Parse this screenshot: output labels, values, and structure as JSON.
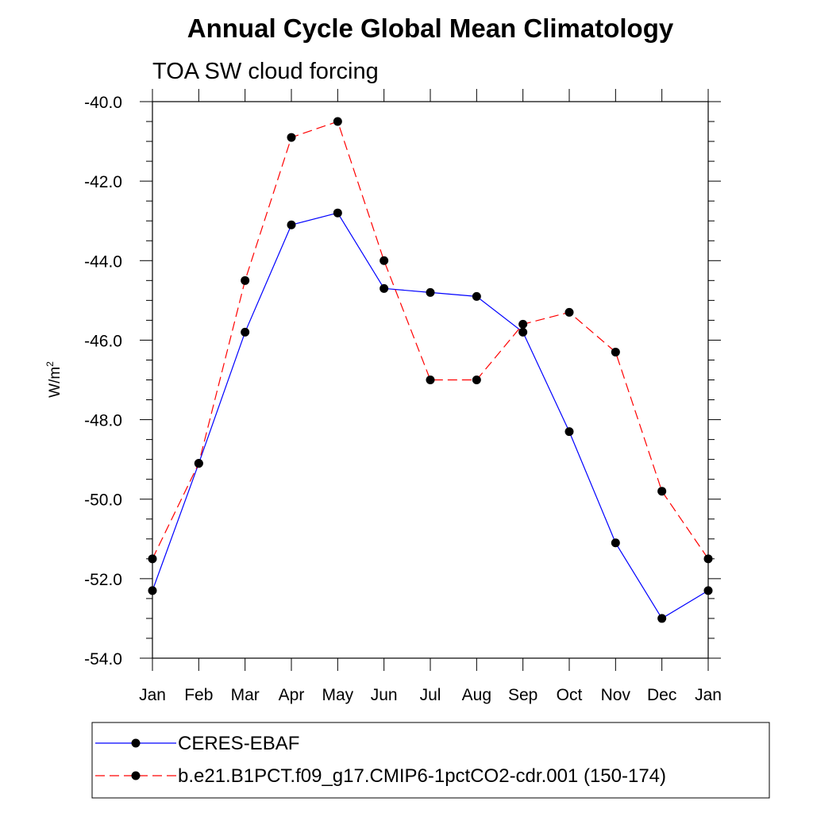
{
  "chart_data": {
    "type": "line",
    "title": "Annual Cycle Global Mean Climatology",
    "subtitle": "TOA SW cloud forcing",
    "ylabel": "W/m",
    "ylabel_sup": "2",
    "xlabel": "",
    "categories": [
      "Jan",
      "Feb",
      "Mar",
      "Apr",
      "May",
      "Jun",
      "Jul",
      "Aug",
      "Sep",
      "Oct",
      "Nov",
      "Dec",
      "Jan"
    ],
    "ylim": [
      -54.0,
      -40.0
    ],
    "yticks": [
      -40.0,
      -42.0,
      -44.0,
      -46.0,
      -48.0,
      -50.0,
      -52.0,
      -54.0
    ],
    "ytick_labels": [
      "-40.0",
      "-42.0",
      "-44.0",
      "-46.0",
      "-48.0",
      "-50.0",
      "-52.0",
      "-54.0"
    ],
    "grid": false,
    "legend_position": "bottom",
    "series": [
      {
        "name": "CERES-EBAF",
        "color": "#0000ff",
        "dash": "solid",
        "values": [
          -52.3,
          -49.1,
          -45.8,
          -43.1,
          -42.8,
          -44.7,
          -44.8,
          -44.9,
          -45.8,
          -48.3,
          -51.1,
          -53.0,
          -52.3
        ]
      },
      {
        "name": "b.e21.B1PCT.f09_g17.CMIP6-1pctCO2-cdr.001 (150-174)",
        "color": "#ff0000",
        "dash": "dashed",
        "values": [
          -51.5,
          -49.1,
          -44.5,
          -40.9,
          -40.5,
          -44.0,
          -47.0,
          -47.0,
          -45.6,
          -45.3,
          -46.3,
          -49.8,
          -51.5
        ]
      }
    ]
  }
}
